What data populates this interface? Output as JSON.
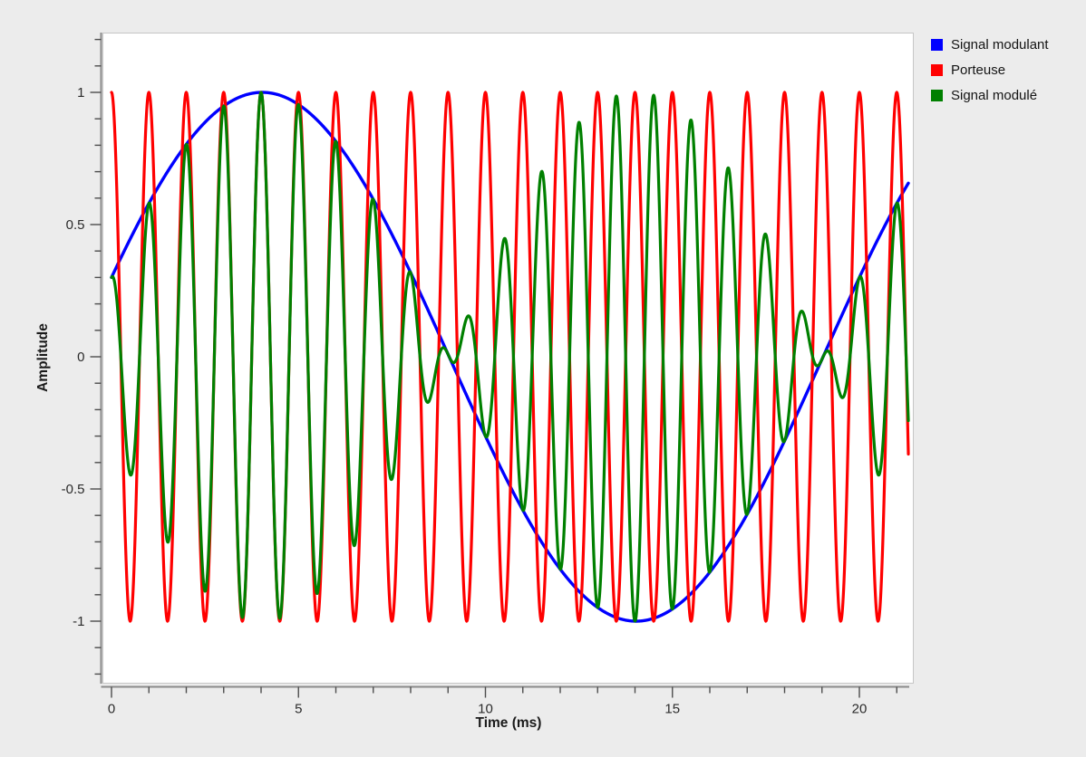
{
  "chart_data": {
    "type": "line",
    "title": "",
    "xlabel": "Time (ms)",
    "ylabel": "Amplitude",
    "xlim": [
      -0.24,
      21.43
    ],
    "ylim": [
      -1.24,
      1.22
    ],
    "x_major_ticks": [
      0,
      5,
      10,
      15,
      20
    ],
    "x_minor_tick_step": 1,
    "x_minor_tick_range": [
      0,
      21
    ],
    "y_major_ticks": [
      1,
      0.5,
      0,
      -0.5,
      -1
    ],
    "y_minor_tick_step": 0.1,
    "y_minor_tick_range": [
      -1.2,
      1.2
    ],
    "grid": false,
    "legend_position": "top-right-outside",
    "t_ms": {
      "start": 0,
      "end": 21.31,
      "step": 0.01
    },
    "series": [
      {
        "name": "Signal modulant",
        "color": "#0000FF",
        "kind": "sine",
        "amplitude": 1,
        "frequency_hz": 50,
        "phase_rad": 0.30469,
        "line_width": 3.4
      },
      {
        "name": "Porteuse",
        "color": "#FF0000",
        "kind": "sine",
        "amplitude": 1,
        "frequency_hz": 1000,
        "phase_rad": 1.5708,
        "line_width": 3.2
      },
      {
        "name": "Signal modulé",
        "color": "#008000",
        "kind": "product",
        "factor_indices": [
          0,
          1
        ],
        "line_width": 3.2
      }
    ],
    "legend": {
      "entries": [
        {
          "label": "Signal modulant",
          "color": "#0000FF"
        },
        {
          "label": "Porteuse",
          "color": "#FF0000"
        },
        {
          "label": "Signal modulé",
          "color": "#008000"
        }
      ]
    }
  }
}
